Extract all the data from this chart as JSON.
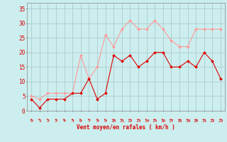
{
  "x": [
    0,
    1,
    2,
    3,
    4,
    5,
    6,
    7,
    8,
    9,
    10,
    11,
    12,
    13,
    14,
    15,
    16,
    17,
    18,
    19,
    20,
    21,
    22,
    23
  ],
  "y_mean": [
    4,
    1,
    4,
    4,
    4,
    6,
    6,
    11,
    4,
    6,
    19,
    17,
    19,
    15,
    17,
    20,
    20,
    15,
    15,
    17,
    15,
    20,
    17,
    11
  ],
  "y_gusts": [
    5,
    4,
    6,
    6,
    6,
    6,
    19,
    11,
    15,
    26,
    22,
    28,
    31,
    28,
    28,
    31,
    28,
    24,
    22,
    22,
    28,
    28,
    28,
    28
  ],
  "color_mean": "#dd0000",
  "color_gusts": "#ff9999",
  "bg_color": "#cceeee",
  "grid_color": "#aacccc",
  "xlabel": "Vent moyen/en rafales ( km/h )",
  "tick_color": "#dd0000",
  "ytick_labels": [
    "0",
    "5",
    "10",
    "15",
    "20",
    "25",
    "30",
    "35"
  ],
  "ytick_vals": [
    0,
    5,
    10,
    15,
    20,
    25,
    30,
    35
  ],
  "ylim": [
    0,
    37
  ],
  "xlim": [
    -0.5,
    23.5
  ],
  "arrow_char": "←"
}
